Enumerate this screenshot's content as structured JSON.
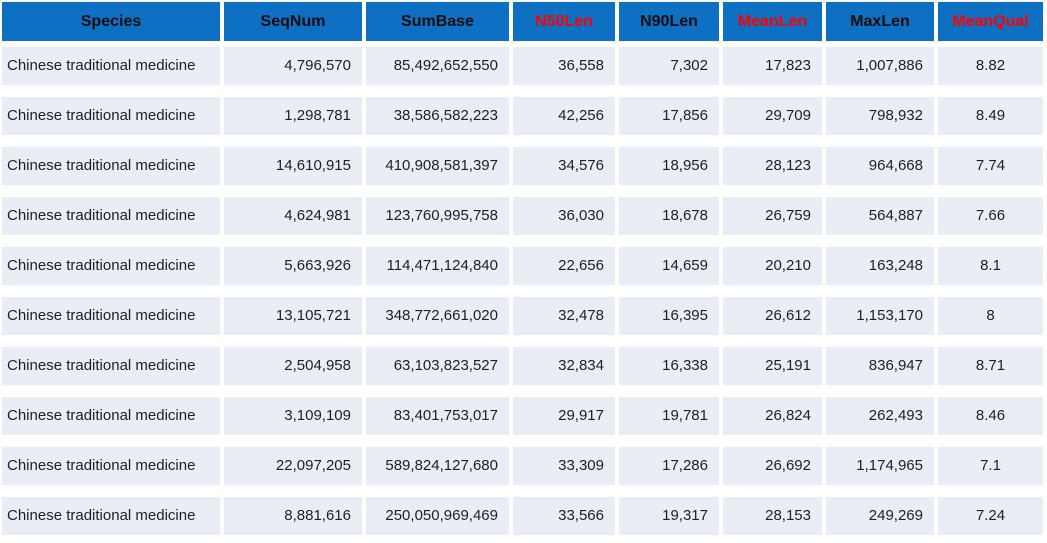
{
  "colors": {
    "header_background": "#0d70c2",
    "header_text": "#0d0d0d",
    "header_highlight_text": "#ff0000",
    "row_background": "#e9edf6",
    "body_text": "#1f1f1f",
    "page_background": "#ffffff"
  },
  "chart_data": {
    "type": "table",
    "title": "",
    "columns": [
      {
        "label": "Species",
        "highlight": false
      },
      {
        "label": "SeqNum",
        "highlight": false
      },
      {
        "label": "SumBase",
        "highlight": false
      },
      {
        "label": "N50Len",
        "highlight": true
      },
      {
        "label": "N90Len",
        "highlight": false
      },
      {
        "label": "MeanLen",
        "highlight": true
      },
      {
        "label": "MaxLen",
        "highlight": false
      },
      {
        "label": "MeanQual",
        "highlight": true
      }
    ],
    "rows": [
      [
        "Chinese traditional medicine",
        "4,796,570",
        "85,492,652,550",
        "36,558",
        "7,302",
        "17,823",
        "1,007,886",
        "8.82"
      ],
      [
        "Chinese traditional medicine",
        "1,298,781",
        "38,586,582,223",
        "42,256",
        "17,856",
        "29,709",
        "798,932",
        "8.49"
      ],
      [
        "Chinese traditional medicine",
        "14,610,915",
        "410,908,581,397",
        "34,576",
        "18,956",
        "28,123",
        "964,668",
        "7.74"
      ],
      [
        "Chinese traditional medicine",
        "4,624,981",
        "123,760,995,758",
        "36,030",
        "18,678",
        "26,759",
        "564,887",
        "7.66"
      ],
      [
        "Chinese traditional medicine",
        "5,663,926",
        "114,471,124,840",
        "22,656",
        "14,659",
        "20,210",
        "163,248",
        "8.1"
      ],
      [
        "Chinese traditional medicine",
        "13,105,721",
        "348,772,661,020",
        "32,478",
        "16,395",
        "26,612",
        "1,153,170",
        "8"
      ],
      [
        "Chinese traditional medicine",
        "2,504,958",
        "63,103,823,527",
        "32,834",
        "16,338",
        "25,191",
        "836,947",
        "8.71"
      ],
      [
        "Chinese traditional medicine",
        "3,109,109",
        "83,401,753,017",
        "29,917",
        "19,781",
        "26,824",
        "262,493",
        "8.46"
      ],
      [
        "Chinese traditional medicine",
        "22,097,205",
        "589,824,127,680",
        "33,309",
        "17,286",
        "26,692",
        "1,174,965",
        "7.1"
      ],
      [
        "Chinese traditional medicine",
        "8,881,616",
        "250,050,969,469",
        "33,566",
        "19,317",
        "28,153",
        "249,269",
        "7.24"
      ]
    ]
  }
}
